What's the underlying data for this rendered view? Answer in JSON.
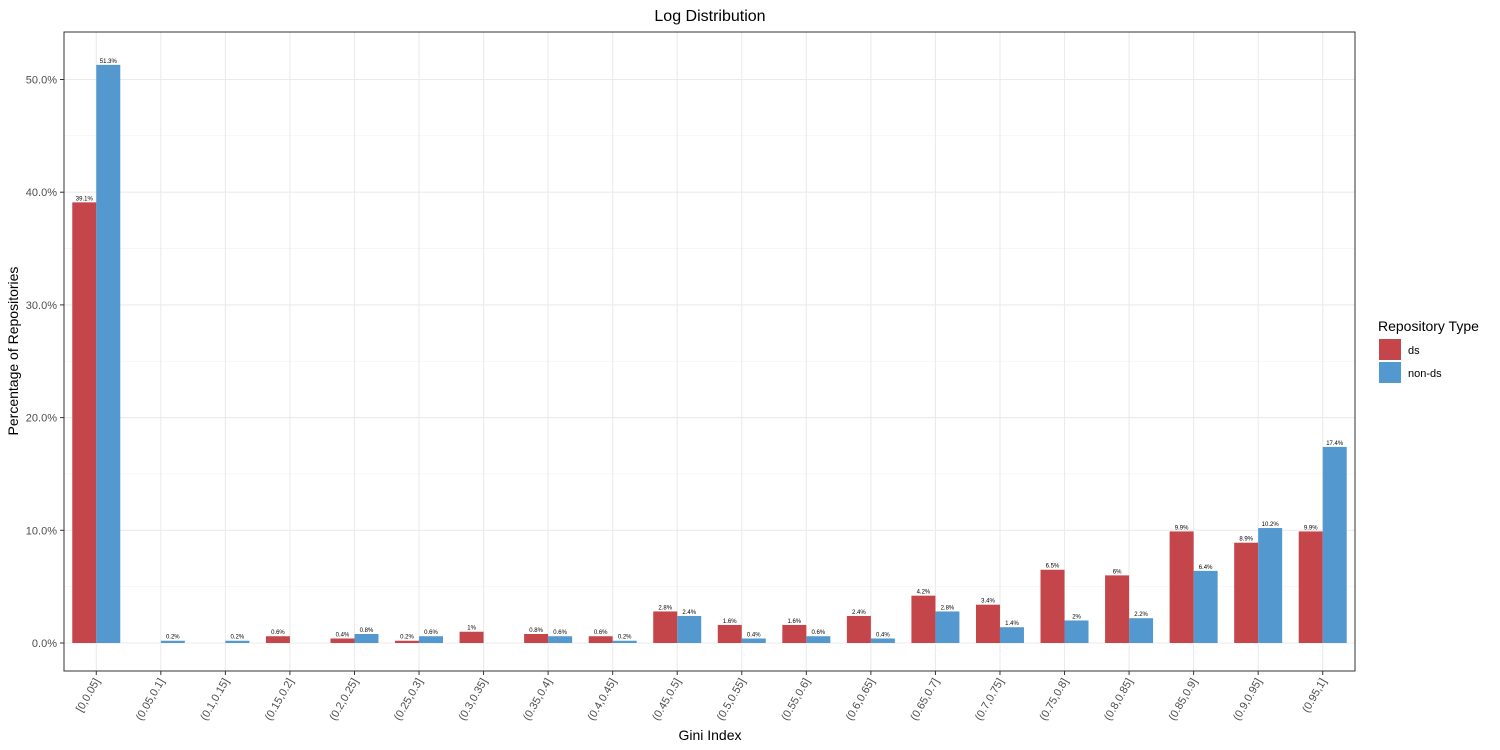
{
  "chart_data": {
    "type": "bar",
    "title": "Log Distribution",
    "xlabel": "Gini Index",
    "ylabel": "Percentage of Repositories",
    "ylim": [
      0,
      54
    ],
    "y_ticks": [
      0,
      10,
      20,
      30,
      40,
      50
    ],
    "y_tick_labels": [
      "0.0%",
      "10.0%",
      "20.0%",
      "30.0%",
      "40.0%",
      "50.0%"
    ],
    "grid": true,
    "legend": {
      "title": "Repository Type",
      "position": "right"
    },
    "categories": [
      "[0,0.05]",
      "(0.05,0.1]",
      "(0.1,0.15]",
      "(0.15,0.2]",
      "(0.2,0.25]",
      "(0.25,0.3]",
      "(0.3,0.35]",
      "(0.35,0.4]",
      "(0.4,0.45]",
      "(0.45,0.5]",
      "(0.5,0.55]",
      "(0.55,0.6]",
      "(0.6,0.65]",
      "(0.65,0.7]",
      "(0.7,0.75]",
      "(0.75,0.8]",
      "(0.8,0.85]",
      "(0.85,0.9]",
      "(0.9,0.95]",
      "(0.95,1]"
    ],
    "series": [
      {
        "name": "ds",
        "color": "#C4464B",
        "values": [
          39.1,
          null,
          null,
          0.6,
          0.4,
          0.2,
          1.0,
          0.8,
          0.6,
          2.8,
          1.6,
          1.6,
          2.4,
          4.2,
          3.4,
          6.5,
          6.0,
          9.9,
          8.9,
          9.9
        ],
        "labels": [
          "39.1%",
          "",
          "",
          "0.6%",
          "0.4%",
          "0.2%",
          "1%",
          "0.8%",
          "0.6%",
          "2.8%",
          "1.6%",
          "1.6%",
          "2.4%",
          "4.2%",
          "3.4%",
          "6.5%",
          "6%",
          "9.9%",
          "8.9%",
          "9.9%"
        ]
      },
      {
        "name": "non-ds",
        "color": "#5498D0",
        "values": [
          51.3,
          0.2,
          0.2,
          null,
          0.8,
          0.6,
          null,
          0.6,
          0.2,
          2.4,
          0.4,
          0.6,
          0.4,
          2.8,
          1.4,
          2.0,
          2.2,
          6.4,
          10.2,
          17.4
        ],
        "labels": [
          "51.3%",
          "0.2%",
          "0.2%",
          "",
          "0.8%",
          "0.6%",
          "",
          "0.6%",
          "0.2%",
          "2.4%",
          "0.4%",
          "0.6%",
          "0.4%",
          "2.8%",
          "1.4%",
          "2%",
          "2.2%",
          "6.4%",
          "10.2%",
          "17.4%"
        ]
      }
    ]
  }
}
